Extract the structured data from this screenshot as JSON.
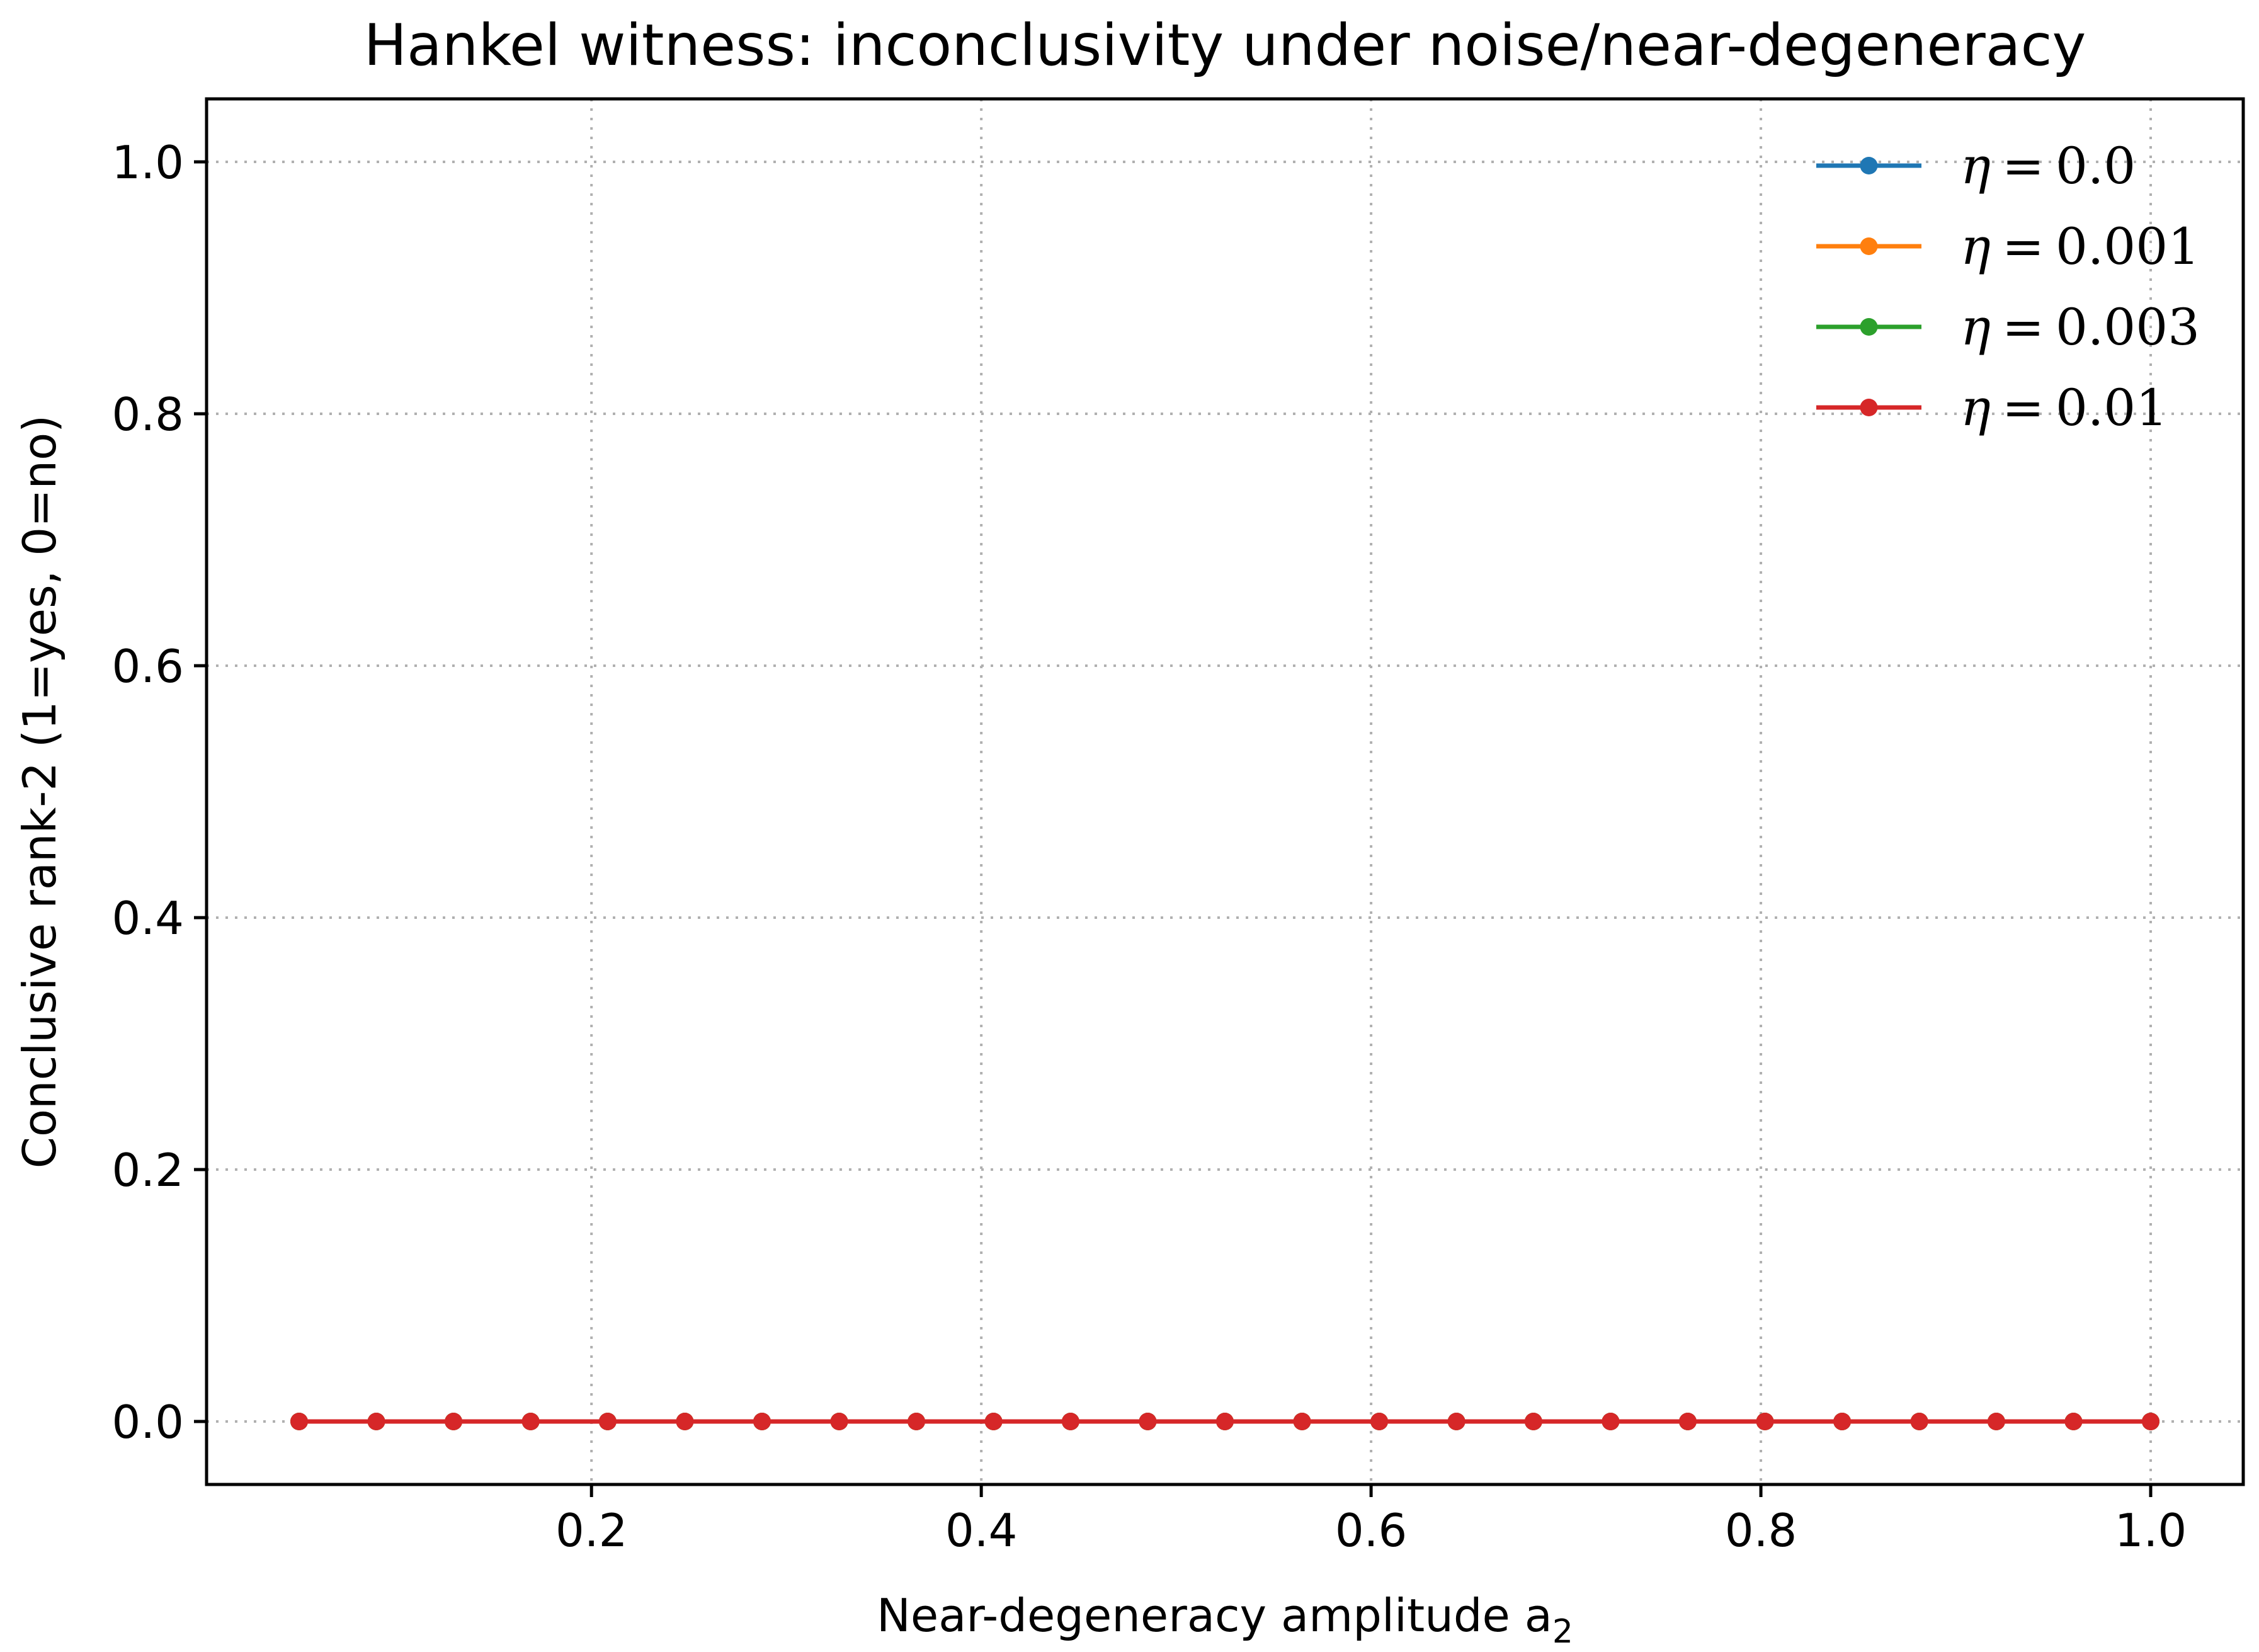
{
  "chart_data": {
    "type": "line",
    "title": "Hankel witness: inconclusivity under noise/near-degeneracy",
    "xlabel": "Near-degeneracy amplitude a",
    "xlabel_subscript": "2",
    "ylabel": "Conclusive rank-2 (1=yes, 0=no)",
    "xlim": [
      0.0025,
      1.0475
    ],
    "ylim": [
      -0.05,
      1.05
    ],
    "xticks": [
      0.2,
      0.4,
      0.6,
      0.8,
      1.0
    ],
    "xtick_labels": [
      "0.2",
      "0.4",
      "0.6",
      "0.8",
      "1.0"
    ],
    "yticks": [
      0.0,
      0.2,
      0.4,
      0.6,
      0.8,
      1.0
    ],
    "ytick_labels": [
      "0.0",
      "0.2",
      "0.4",
      "0.6",
      "0.8",
      "1.0"
    ],
    "grid": true,
    "legend_position": "top-right",
    "x": [
      0.05,
      0.0896,
      0.1292,
      0.1688,
      0.2083,
      0.2479,
      0.2875,
      0.3271,
      0.3667,
      0.4063,
      0.4458,
      0.4854,
      0.525,
      0.5646,
      0.6042,
      0.6438,
      0.6833,
      0.7229,
      0.7625,
      0.8021,
      0.8417,
      0.8813,
      0.9208,
      0.9604,
      1.0
    ],
    "series": [
      {
        "name": "η = 0.0",
        "symbol": "η",
        "eq": "=",
        "value": "0.0",
        "color": "#1f77b4",
        "values": [
          0,
          0,
          0,
          0,
          0,
          0,
          0,
          0,
          0,
          0,
          0,
          0,
          0,
          0,
          0,
          0,
          0,
          0,
          0,
          0,
          0,
          0,
          0,
          0,
          0
        ]
      },
      {
        "name": "η = 0.001",
        "symbol": "η",
        "eq": "=",
        "value": "0.001",
        "color": "#ff7f0e",
        "values": [
          0,
          0,
          0,
          0,
          0,
          0,
          0,
          0,
          0,
          0,
          0,
          0,
          0,
          0,
          0,
          0,
          0,
          0,
          0,
          0,
          0,
          0,
          0,
          0,
          0
        ]
      },
      {
        "name": "η = 0.003",
        "symbol": "η",
        "eq": "=",
        "value": "0.003",
        "color": "#2ca02c",
        "values": [
          0,
          0,
          0,
          0,
          0,
          0,
          0,
          0,
          0,
          0,
          0,
          0,
          0,
          0,
          0,
          0,
          0,
          0,
          0,
          0,
          0,
          0,
          0,
          0,
          0
        ]
      },
      {
        "name": "η = 0.01",
        "symbol": "η",
        "eq": "=",
        "value": "0.01",
        "color": "#d62728",
        "values": [
          0,
          0,
          0,
          0,
          0,
          0,
          0,
          0,
          0,
          0,
          0,
          0,
          0,
          0,
          0,
          0,
          0,
          0,
          0,
          0,
          0,
          0,
          0,
          0,
          0
        ]
      }
    ]
  }
}
